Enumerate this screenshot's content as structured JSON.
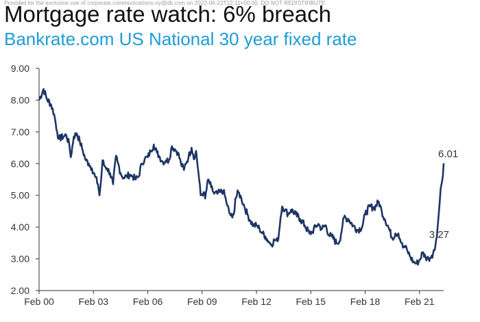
{
  "watermark": "Provided for the exclusive use of corporate.communications-ny@db.com on 2022-06-22T12:11+00:00. DO NOT REDISTRIBUTE",
  "header": {
    "title": "Mortgage rate watch: 6% breach",
    "subtitle": "Bankrate.com US National 30 year fixed rate"
  },
  "colors": {
    "line": "#1e3564",
    "subtitle": "#1f9bd7",
    "axis": "#333333"
  },
  "chart_data": {
    "type": "line",
    "title": "Mortgage rate watch: 6% breach",
    "subtitle": "Bankrate.com US National 30 year fixed rate",
    "xlabel": "",
    "ylabel": "",
    "ylim": [
      2.0,
      9.0
    ],
    "yticks": [
      "2.00",
      "3.00",
      "4.00",
      "5.00",
      "6.00",
      "7.00",
      "8.00",
      "9.00"
    ],
    "xticks": [
      "Feb 00",
      "Feb 03",
      "Feb 06",
      "Feb 09",
      "Feb 12",
      "Feb 15",
      "Feb 18",
      "Feb 21"
    ],
    "grid": false,
    "annotations": [
      {
        "label": "6.01",
        "date": "2022-06",
        "value": 6.01
      },
      {
        "label": "3.27",
        "date": "2021-12",
        "value": 3.27
      }
    ],
    "series": [
      {
        "points": [
          [
            "2000-02",
            8.0
          ],
          [
            "2000-05",
            8.35
          ],
          [
            "2000-07",
            8.05
          ],
          [
            "2000-10",
            7.85
          ],
          [
            "2000-12",
            7.55
          ],
          [
            "2001-02",
            7.0
          ],
          [
            "2001-03",
            6.78
          ],
          [
            "2001-06",
            6.85
          ],
          [
            "2001-08",
            6.9
          ],
          [
            "2001-10",
            6.6
          ],
          [
            "2001-11",
            6.2
          ],
          [
            "2002-01",
            6.85
          ],
          [
            "2002-03",
            6.95
          ],
          [
            "2002-05",
            6.7
          ],
          [
            "2002-07",
            6.4
          ],
          [
            "2002-09",
            6.1
          ],
          [
            "2002-11",
            6.0
          ],
          [
            "2003-01",
            5.85
          ],
          [
            "2003-03",
            5.6
          ],
          [
            "2003-05",
            5.35
          ],
          [
            "2003-06",
            5.0
          ],
          [
            "2003-07",
            5.45
          ],
          [
            "2003-08",
            6.1
          ],
          [
            "2003-09",
            5.95
          ],
          [
            "2003-11",
            5.85
          ],
          [
            "2004-01",
            5.7
          ],
          [
            "2004-03",
            5.35
          ],
          [
            "2004-05",
            6.25
          ],
          [
            "2004-06",
            6.05
          ],
          [
            "2004-08",
            5.7
          ],
          [
            "2004-10",
            5.55
          ],
          [
            "2004-12",
            5.6
          ],
          [
            "2005-02",
            5.65
          ],
          [
            "2005-04",
            5.6
          ],
          [
            "2005-06",
            5.5
          ],
          [
            "2005-08",
            5.6
          ],
          [
            "2005-10",
            6.0
          ],
          [
            "2005-12",
            6.15
          ],
          [
            "2006-02",
            6.2
          ],
          [
            "2006-04",
            6.4
          ],
          [
            "2006-06",
            6.6
          ],
          [
            "2006-08",
            6.35
          ],
          [
            "2006-10",
            6.2
          ],
          [
            "2006-12",
            6.05
          ],
          [
            "2007-02",
            6.1
          ],
          [
            "2007-04",
            6.1
          ],
          [
            "2007-06",
            6.55
          ],
          [
            "2007-08",
            6.45
          ],
          [
            "2007-10",
            6.35
          ],
          [
            "2007-12",
            6.0
          ],
          [
            "2008-02",
            5.8
          ],
          [
            "2008-03",
            6.0
          ],
          [
            "2008-05",
            6.2
          ],
          [
            "2008-07",
            6.5
          ],
          [
            "2008-09",
            6.15
          ],
          [
            "2008-10",
            6.4
          ],
          [
            "2008-12",
            5.5
          ],
          [
            "2009-01",
            5.0
          ],
          [
            "2009-03",
            5.1
          ],
          [
            "2009-04",
            4.9
          ],
          [
            "2009-06",
            5.5
          ],
          [
            "2009-08",
            5.25
          ],
          [
            "2009-10",
            5.05
          ],
          [
            "2009-12",
            5.05
          ],
          [
            "2010-02",
            5.1
          ],
          [
            "2010-04",
            5.15
          ],
          [
            "2010-06",
            4.8
          ],
          [
            "2010-08",
            4.45
          ],
          [
            "2010-10",
            4.3
          ],
          [
            "2010-11",
            4.4
          ],
          [
            "2010-12",
            4.9
          ],
          [
            "2011-02",
            5.1
          ],
          [
            "2011-04",
            4.9
          ],
          [
            "2011-06",
            4.65
          ],
          [
            "2011-08",
            4.4
          ],
          [
            "2011-10",
            4.2
          ],
          [
            "2011-12",
            4.05
          ],
          [
            "2012-02",
            4.05
          ],
          [
            "2012-04",
            3.95
          ],
          [
            "2012-06",
            3.8
          ],
          [
            "2012-08",
            3.7
          ],
          [
            "2012-10",
            3.55
          ],
          [
            "2012-12",
            3.45
          ],
          [
            "2013-02",
            3.6
          ],
          [
            "2013-04",
            3.55
          ],
          [
            "2013-05",
            3.85
          ],
          [
            "2013-06",
            4.3
          ],
          [
            "2013-07",
            4.65
          ],
          [
            "2013-09",
            4.55
          ],
          [
            "2013-11",
            4.4
          ],
          [
            "2014-01",
            4.55
          ],
          [
            "2014-04",
            4.4
          ],
          [
            "2014-07",
            4.25
          ],
          [
            "2014-10",
            4.05
          ],
          [
            "2015-01",
            3.8
          ],
          [
            "2015-03",
            3.85
          ],
          [
            "2015-05",
            4.0
          ],
          [
            "2015-07",
            4.1
          ],
          [
            "2015-09",
            3.95
          ],
          [
            "2015-12",
            4.05
          ],
          [
            "2016-02",
            3.75
          ],
          [
            "2016-04",
            3.7
          ],
          [
            "2016-07",
            3.5
          ],
          [
            "2016-09",
            3.55
          ],
          [
            "2016-11",
            4.05
          ],
          [
            "2016-12",
            4.3
          ],
          [
            "2017-03",
            4.25
          ],
          [
            "2017-06",
            4.05
          ],
          [
            "2017-09",
            3.9
          ],
          [
            "2017-12",
            4.0
          ],
          [
            "2018-02",
            4.4
          ],
          [
            "2018-05",
            4.65
          ],
          [
            "2018-08",
            4.6
          ],
          [
            "2018-11",
            4.8
          ],
          [
            "2019-01",
            4.5
          ],
          [
            "2019-03",
            4.25
          ],
          [
            "2019-05",
            4.05
          ],
          [
            "2019-08",
            3.65
          ],
          [
            "2019-10",
            3.8
          ],
          [
            "2019-12",
            3.8
          ],
          [
            "2020-02",
            3.5
          ],
          [
            "2020-03",
            3.35
          ],
          [
            "2020-04",
            3.4
          ],
          [
            "2020-06",
            3.25
          ],
          [
            "2020-08",
            3.05
          ],
          [
            "2020-10",
            2.9
          ],
          [
            "2020-12",
            2.85
          ],
          [
            "2021-02",
            2.95
          ],
          [
            "2021-04",
            3.2
          ],
          [
            "2021-06",
            3.05
          ],
          [
            "2021-08",
            3.0
          ],
          [
            "2021-10",
            3.1
          ],
          [
            "2021-12",
            3.27
          ],
          [
            "2022-01",
            3.6
          ],
          [
            "2022-02",
            4.0
          ],
          [
            "2022-03",
            4.55
          ],
          [
            "2022-04",
            5.2
          ],
          [
            "2022-05",
            5.45
          ],
          [
            "2022-06",
            6.01
          ]
        ]
      }
    ]
  }
}
